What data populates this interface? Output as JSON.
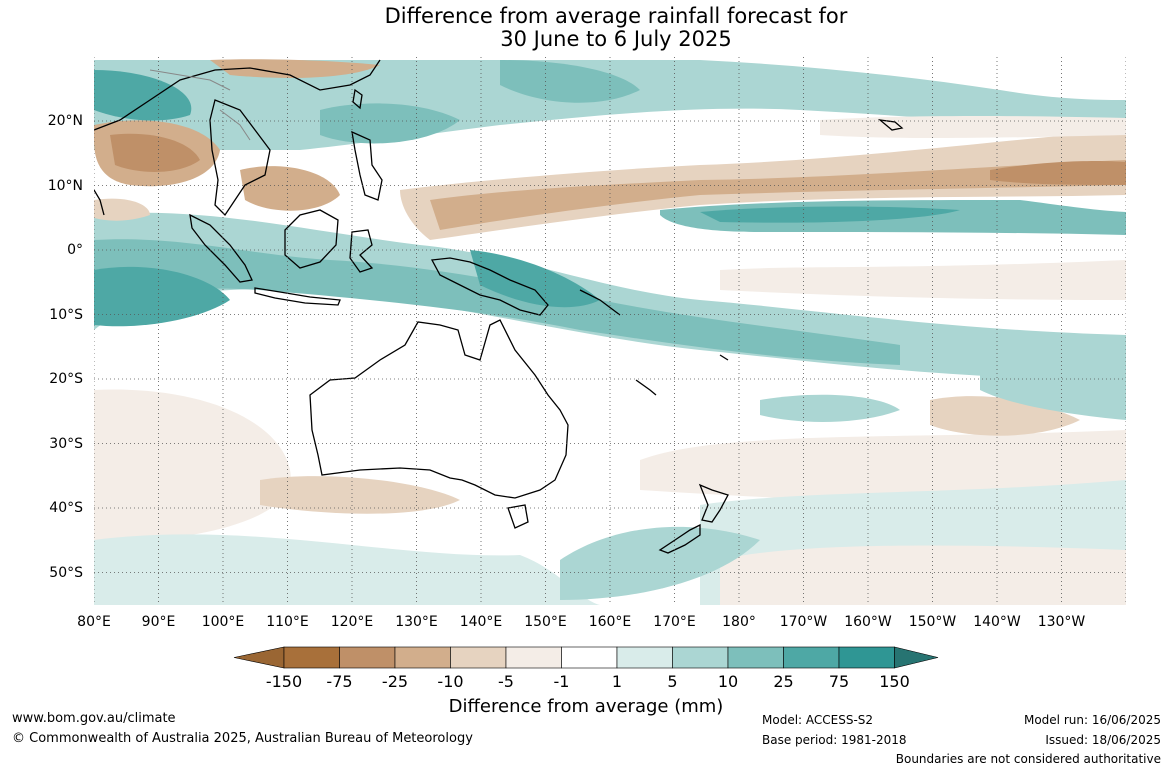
{
  "title": {
    "line1": "Difference from average rainfall forecast for",
    "line2": "30 June to 6 July 2025"
  },
  "map": {
    "lat_labels": [
      "20°N",
      "10°N",
      "0°",
      "10°S",
      "20°S",
      "30°S",
      "40°S",
      "50°S"
    ],
    "lon_labels": [
      "80°E",
      "90°E",
      "100°E",
      "110°E",
      "120°E",
      "130°E",
      "140°E",
      "150°E",
      "160°E",
      "170°E",
      "180°",
      "170°W",
      "160°W",
      "150°W",
      "140°W",
      "130°W"
    ]
  },
  "legend": {
    "title": "Difference from average (mm)",
    "ticks": [
      "-150",
      "-75",
      "-25",
      "-10",
      "-5",
      "-1",
      "1",
      "5",
      "10",
      "25",
      "75",
      "150"
    ],
    "colors": [
      "#a8703a",
      "#bf9068",
      "#d2ae8c",
      "#e6d3c0",
      "#f4ede7",
      "#ffffff",
      "#d9ecea",
      "#abd6d3",
      "#7dbfbb",
      "#4ea8a5",
      "#2f9694",
      "#2a7f7d"
    ],
    "dry_end_color": "#9a6633",
    "wet_end_color": "#277472"
  },
  "footer": {
    "website": "www.bom.gov.au/climate",
    "copyright": "© Commonwealth of Australia 2025, Australian Bureau of Meteorology",
    "model": "Model: ACCESS-S2",
    "base_period": "Base period: 1981-2018",
    "model_run": "Model run: 16/06/2025",
    "issued": "Issued: 18/06/2025",
    "disclaimer": "Boundaries are not considered authoritative"
  }
}
